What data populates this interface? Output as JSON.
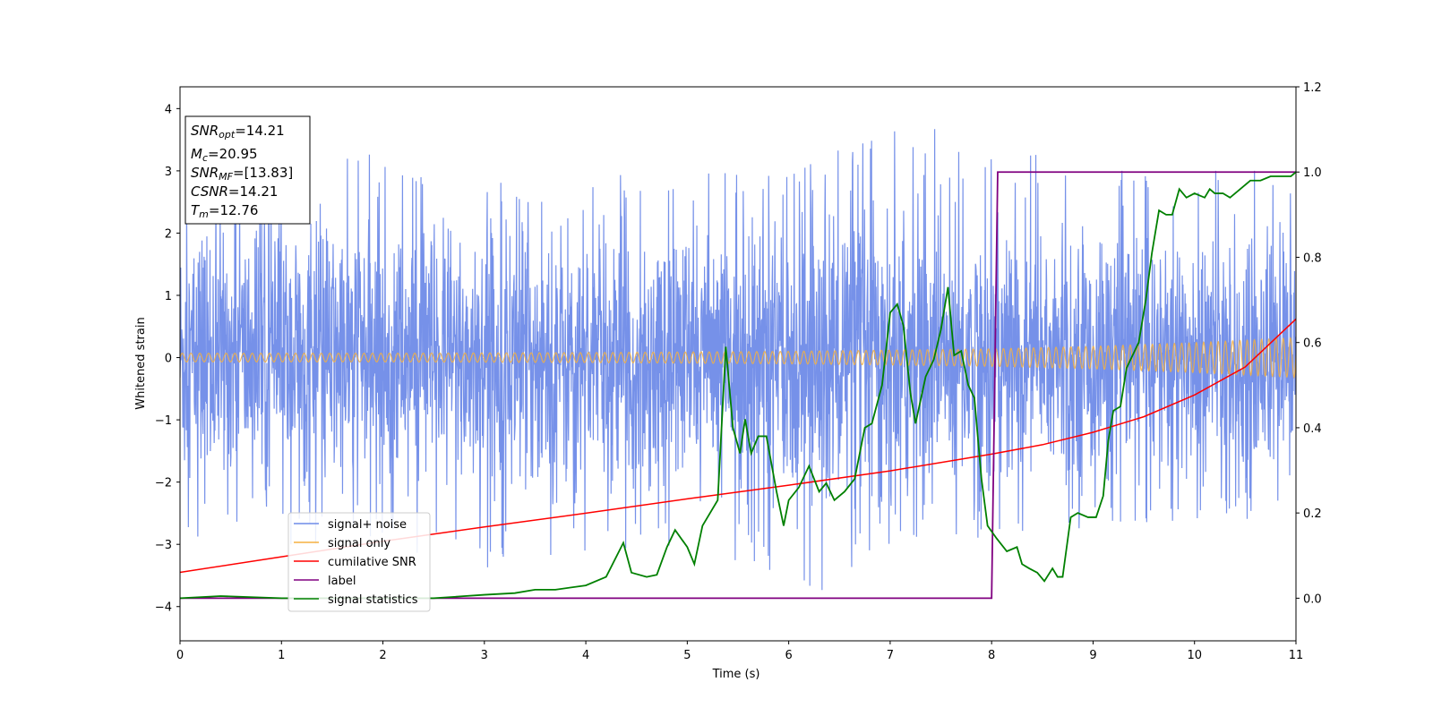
{
  "chart_data": {
    "type": "line",
    "xlabel": "Time (s)",
    "ylabel": "Whitened strain",
    "xlim": [
      0,
      11
    ],
    "ylim_left": [
      -4.55,
      4.35
    ],
    "ylim_right": [
      -0.1,
      1.2
    ],
    "x_ticks": [
      "0",
      "1",
      "2",
      "3",
      "4",
      "5",
      "6",
      "7",
      "8",
      "9",
      "10",
      "11"
    ],
    "y_left_ticks": [
      "4",
      "3",
      "2",
      "1",
      "0",
      "−1",
      "−2",
      "−3",
      "−4"
    ],
    "y_right_ticks": [
      "1.2",
      "1.0",
      "0.8",
      "0.6",
      "0.4",
      "0.2",
      "0.0"
    ],
    "grid": false,
    "legend_position": "lower-left",
    "info_box": {
      "snr_opt_name": "SNR",
      "snr_opt_sub": "opt",
      "snr_opt_value": "=14.21",
      "mc_name": "M",
      "mc_sub": "c",
      "mc_value": "=20.95",
      "snr_mf_name": "SNR",
      "snr_mf_sub": "MF",
      "snr_mf_value": "=[13.83]",
      "csnr_name": "CSNR",
      "csnr_value": "=14.21",
      "tm_name": "T",
      "tm_sub": "m",
      "tm_value": "=12.76"
    },
    "series": [
      {
        "name": "signal+ noise",
        "color": "#6f8be8",
        "axis": "left",
        "description": "noise envelope",
        "x": [
          0,
          1,
          2,
          3,
          4,
          5,
          6,
          7,
          8,
          9,
          10,
          11
        ],
        "y_max": [
          2.8,
          3.0,
          3.3,
          2.8,
          2.9,
          3.0,
          2.9,
          3.9,
          3.5,
          3.0,
          3.0,
          3.0
        ],
        "y_min": [
          -3.2,
          -3.0,
          -3.0,
          -3.4,
          -3.1,
          -3.0,
          -4.2,
          -3.0,
          -3.0,
          -2.7,
          -2.6,
          -2.6
        ]
      },
      {
        "name": "signal only",
        "color": "#f5b041",
        "axis": "left",
        "x": [
          0,
          2,
          4,
          6,
          8,
          9,
          10,
          11
        ],
        "amplitude": [
          0.07,
          0.07,
          0.08,
          0.1,
          0.14,
          0.18,
          0.24,
          0.32
        ]
      },
      {
        "name": "cumilative SNR",
        "color": "#ff0000",
        "axis": "left",
        "x": [
          0,
          1,
          2,
          3,
          4,
          5,
          6,
          7,
          8,
          8.5,
          9,
          9.5,
          10,
          10.5,
          11
        ],
        "y": [
          -3.45,
          -3.2,
          -2.95,
          -2.72,
          -2.5,
          -2.27,
          -2.05,
          -1.82,
          -1.55,
          -1.4,
          -1.2,
          -0.95,
          -0.6,
          -0.15,
          0.62
        ]
      },
      {
        "name": "label",
        "color": "#800080",
        "axis": "right",
        "x": [
          0,
          8.0,
          8.06,
          11
        ],
        "y": [
          0,
          0,
          1,
          1
        ]
      },
      {
        "name": "signal statistics",
        "color": "#008000",
        "axis": "right",
        "x": [
          0,
          0.4,
          1,
          2,
          2.5,
          3,
          3.3,
          3.5,
          3.7,
          4,
          4.2,
          4.37,
          4.45,
          4.6,
          4.7,
          4.8,
          4.88,
          5.0,
          5.07,
          5.15,
          5.3,
          5.38,
          5.45,
          5.52,
          5.57,
          5.63,
          5.7,
          5.78,
          5.88,
          5.95,
          6.0,
          6.1,
          6.2,
          6.3,
          6.37,
          6.45,
          6.55,
          6.65,
          6.75,
          6.82,
          6.92,
          7.0,
          7.07,
          7.13,
          7.2,
          7.25,
          7.35,
          7.43,
          7.5,
          7.57,
          7.63,
          7.7,
          7.77,
          7.83,
          7.9,
          7.96,
          8.05,
          8.15,
          8.25,
          8.3,
          8.37,
          8.45,
          8.52,
          8.6,
          8.65,
          8.7,
          8.78,
          8.85,
          8.95,
          9.03,
          9.1,
          9.15,
          9.2,
          9.27,
          9.33,
          9.45,
          9.52,
          9.58,
          9.65,
          9.72,
          9.78,
          9.85,
          9.92,
          10.0,
          10.1,
          10.15,
          10.2,
          10.28,
          10.35,
          10.45,
          10.55,
          10.65,
          10.75,
          10.85,
          10.95,
          11.0
        ],
        "y": [
          0,
          0.005,
          0,
          0,
          0,
          0.008,
          0.012,
          0.02,
          0.02,
          0.03,
          0.05,
          0.13,
          0.06,
          0.05,
          0.055,
          0.12,
          0.16,
          0.12,
          0.08,
          0.17,
          0.23,
          0.59,
          0.4,
          0.34,
          0.42,
          0.34,
          0.38,
          0.38,
          0.25,
          0.17,
          0.23,
          0.26,
          0.31,
          0.25,
          0.27,
          0.23,
          0.25,
          0.28,
          0.4,
          0.41,
          0.5,
          0.67,
          0.69,
          0.64,
          0.48,
          0.41,
          0.52,
          0.56,
          0.63,
          0.73,
          0.57,
          0.58,
          0.5,
          0.47,
          0.28,
          0.17,
          0.14,
          0.11,
          0.12,
          0.08,
          0.07,
          0.06,
          0.04,
          0.07,
          0.05,
          0.05,
          0.19,
          0.2,
          0.19,
          0.19,
          0.24,
          0.37,
          0.44,
          0.45,
          0.54,
          0.6,
          0.7,
          0.81,
          0.91,
          0.9,
          0.9,
          0.96,
          0.94,
          0.95,
          0.94,
          0.96,
          0.95,
          0.95,
          0.94,
          0.96,
          0.98,
          0.98,
          0.99,
          0.99,
          0.99,
          1.0
        ]
      }
    ]
  }
}
